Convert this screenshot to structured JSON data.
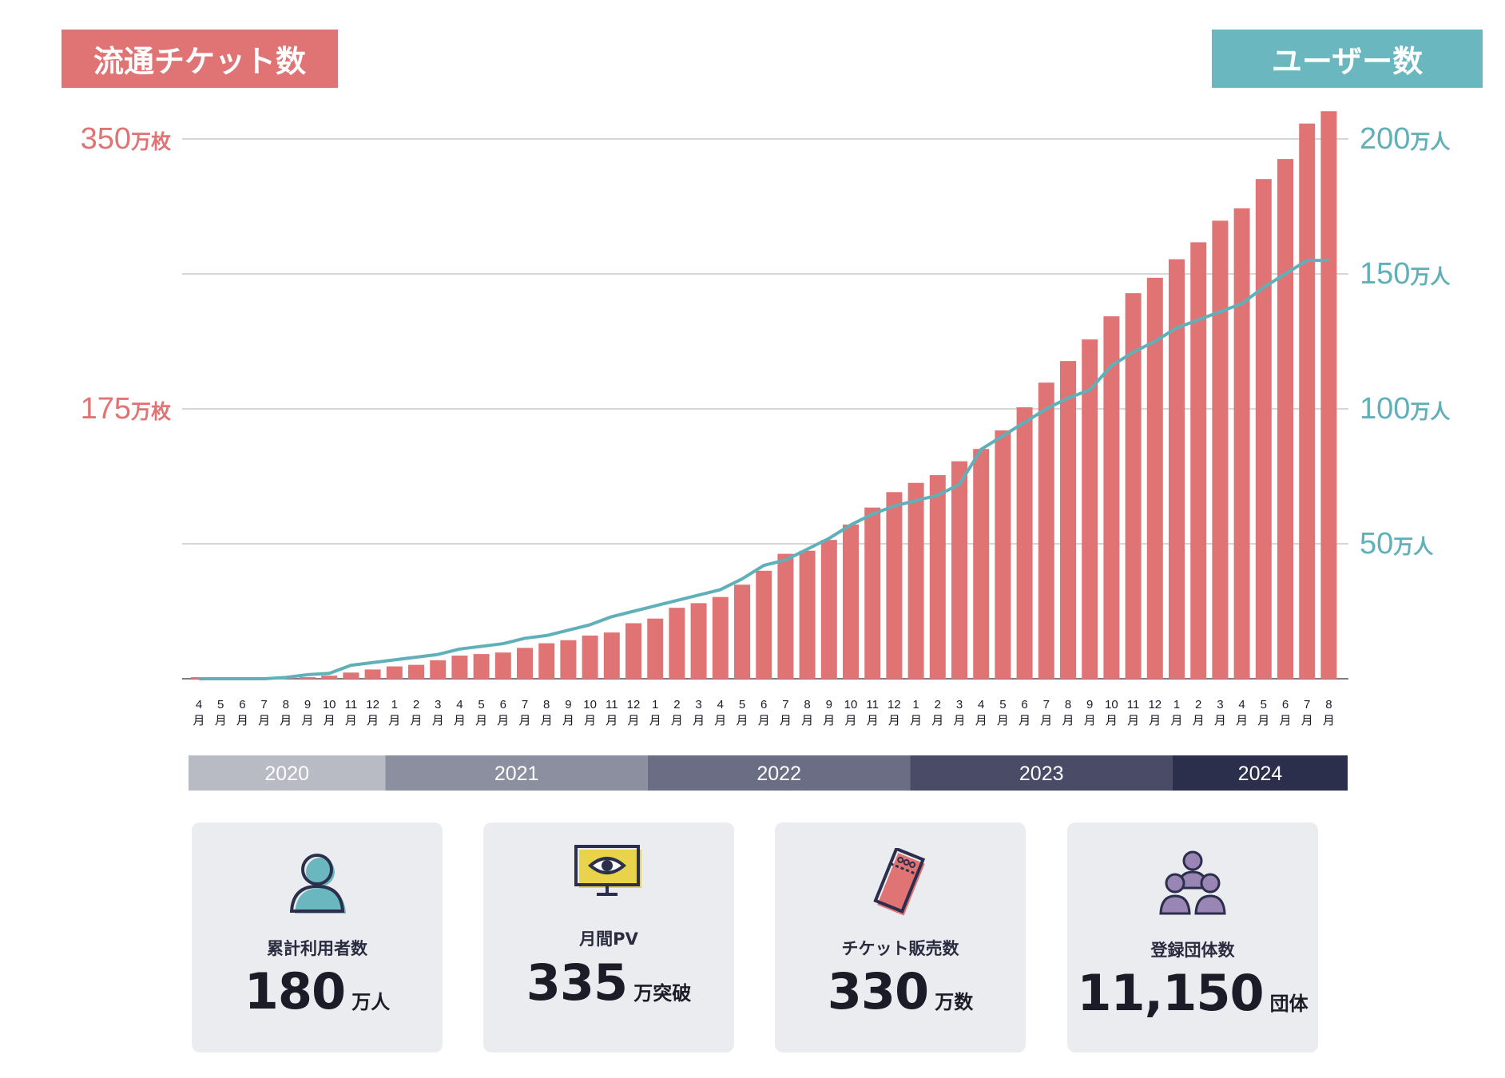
{
  "header": {
    "left_title": "流通チケット数",
    "right_title": "ユーザー数"
  },
  "chart_data": {
    "type": "bar",
    "title_left": "流通チケット数",
    "title_right": "ユーザー数",
    "categories": [
      "4",
      "5",
      "6",
      "7",
      "8",
      "9",
      "10",
      "11",
      "12",
      "1",
      "2",
      "3",
      "4",
      "5",
      "6",
      "7",
      "8",
      "9",
      "10",
      "11",
      "12",
      "1",
      "2",
      "3",
      "4",
      "5",
      "6",
      "7",
      "8",
      "9",
      "10",
      "11",
      "12",
      "1",
      "2",
      "3",
      "4",
      "5",
      "6",
      "7",
      "8",
      "9",
      "10",
      "11",
      "12",
      "1",
      "2",
      "3",
      "4",
      "5",
      "6",
      "7",
      "8"
    ],
    "category_suffix": "月",
    "years": [
      {
        "label": "2020",
        "months": 9,
        "color": "#b8bac4"
      },
      {
        "label": "2021",
        "months": 12,
        "color": "#8c8f9f"
      },
      {
        "label": "2022",
        "months": 12,
        "color": "#6a6d83"
      },
      {
        "label": "2023",
        "months": 12,
        "color": "#4a4c67"
      },
      {
        "label": "2024",
        "months": 8,
        "color": "#2b2f4c"
      }
    ],
    "left_axis": {
      "ylim": [
        0,
        350
      ],
      "ticks": [
        {
          "value": 350,
          "num": "350",
          "unit": "万枚"
        },
        {
          "value": 175,
          "num": "175",
          "unit": "万枚"
        }
      ],
      "color": "#e07474"
    },
    "right_axis": {
      "ylim": [
        0,
        200
      ],
      "ticks": [
        {
          "value": 200,
          "num": "200",
          "unit": "万人"
        },
        {
          "value": 150,
          "num": "150",
          "unit": "万人"
        },
        {
          "value": 100,
          "num": "100",
          "unit": "万人"
        },
        {
          "value": 50,
          "num": "50",
          "unit": "万人"
        }
      ],
      "color": "#5fb0b8"
    },
    "gridlines": [
      0,
      87.5,
      175,
      262.5,
      350
    ],
    "series": [
      {
        "name": "流通チケット数",
        "type": "bar",
        "axis": "left",
        "color": "#e07474",
        "values": [
          1,
          1,
          1,
          1,
          1,
          1,
          2,
          4,
          6,
          8,
          9,
          12,
          15,
          16,
          17,
          20,
          23,
          25,
          28,
          30,
          36,
          39,
          46,
          49,
          53,
          61,
          70,
          81,
          83,
          90,
          100,
          111,
          121,
          127,
          132,
          141,
          149,
          161,
          176,
          192,
          206,
          220,
          235,
          250,
          260,
          272,
          283,
          297,
          305,
          324,
          337,
          360,
          368
        ]
      },
      {
        "name": "ユーザー数",
        "type": "line",
        "axis": "right",
        "color": "#5fb0b8",
        "values": [
          0,
          0,
          0,
          0,
          0.5,
          1.5,
          2,
          5,
          6,
          7,
          8,
          9,
          11,
          12,
          13,
          15,
          16,
          18,
          20,
          23,
          25,
          27,
          29,
          31,
          33,
          37,
          42,
          44,
          48,
          52,
          57,
          61,
          64,
          66,
          68,
          72,
          85,
          90,
          95,
          100,
          104,
          107,
          116,
          121,
          125,
          130,
          133,
          136,
          139,
          145,
          150,
          155,
          155
        ]
      }
    ]
  },
  "stats": [
    {
      "label": "累計利用者数",
      "value": "180",
      "unit": "万人",
      "icon": "person-icon"
    },
    {
      "label": "月間PV",
      "value": "335",
      "unit": "万突破",
      "icon": "monitor-eye-icon"
    },
    {
      "label": "チケット販売数",
      "value": "330",
      "unit": "万数",
      "icon": "ticket-icon"
    },
    {
      "label": "登録団体数",
      "value": "11,150",
      "unit": "団体",
      "icon": "group-icon"
    }
  ]
}
